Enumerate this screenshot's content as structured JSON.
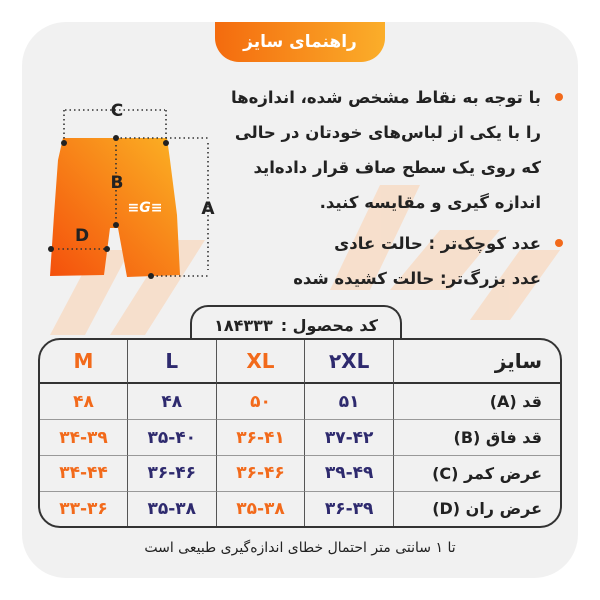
{
  "header": {
    "title": "راهنمای سایز"
  },
  "instructions": [
    "با توجه به نقاط مشخص شده، اندازه‌ها را با یکی از لباس‌های خودتان در حالی که روی یک سطح صاف قرار داده‌اید اندازه گیری و مقایسه کنید.",
    "عدد کوچک‌تر : حالت عادی\nعدد بزرگ‌تر: حالت کشیده شده"
  ],
  "diagram": {
    "labels": {
      "a": "A",
      "b": "B",
      "c": "C",
      "d": "D"
    }
  },
  "product_code": {
    "label": "کد محصول :",
    "value": "۱۸۴۳۳۳"
  },
  "table": {
    "header_label": "سایز",
    "sizes": [
      "۲XL",
      "XL",
      "L",
      "M"
    ],
    "rows": [
      {
        "label": "قد (A)",
        "values": [
          "۵۱",
          "۵۰",
          "۴۸",
          "۴۸"
        ]
      },
      {
        "label": "قد فاق (B)",
        "values": [
          "۳۷-۴۲",
          "۳۶-۴۱",
          "۳۵-۴۰",
          "۳۴-۳۹"
        ]
      },
      {
        "label": "عرض کمر (C)",
        "values": [
          "۳۹-۴۹",
          "۳۶-۴۶",
          "۳۶-۴۶",
          "۳۴-۴۴"
        ]
      },
      {
        "label": "عرض ران (D)",
        "values": [
          "۳۶-۳۹",
          "۳۵-۳۸",
          "۳۵-۳۸",
          "۳۳-۳۶"
        ]
      }
    ]
  },
  "footnote": "تا ۱ سانتی متر احتمال خطای اندازه‌گیری طبیعی است",
  "colors": {
    "accent": "#f26a1b",
    "navy": "#2e2a6e",
    "card": "#f1f1f1"
  }
}
